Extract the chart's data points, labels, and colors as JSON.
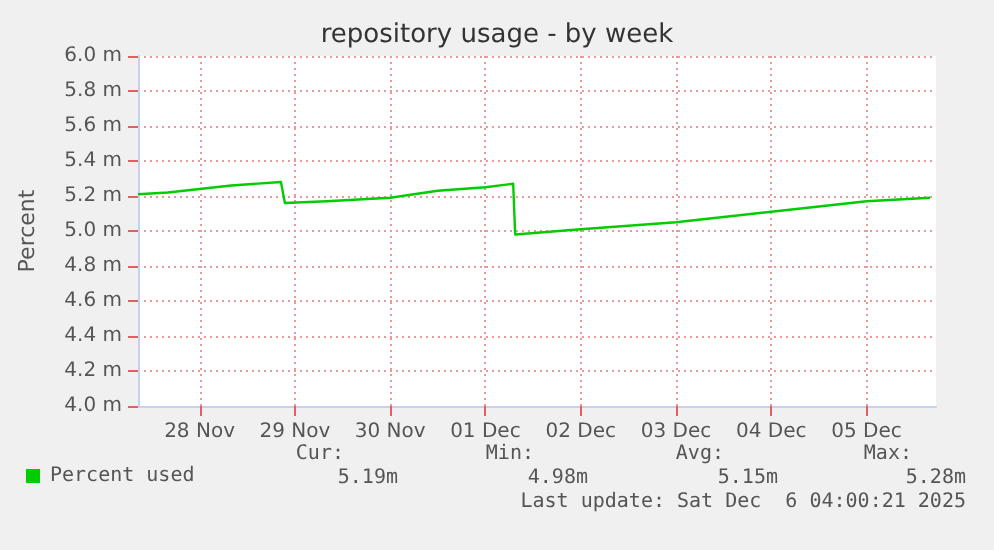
{
  "chart_data": {
    "type": "line",
    "title": "repository usage - by week",
    "ylabel": "Percent",
    "x": [
      "2025-11-27T20:30",
      "2025-11-28T04:00",
      "2025-11-28T12:00",
      "2025-11-28T20:00",
      "2025-11-29T08:30",
      "2025-11-29T09:30",
      "2025-11-29T20:00",
      "2025-11-30T12:00",
      "2025-12-01T00:00",
      "2025-12-01T12:00",
      "2025-12-01T19:00",
      "2025-12-01T19:30",
      "2025-12-02T12:00",
      "2025-12-03T12:00",
      "2025-12-04T12:00",
      "2025-12-05T12:00",
      "2025-12-06T04:00"
    ],
    "series": [
      {
        "name": "Percent used",
        "color": "#00cc00",
        "values": [
          5.21,
          5.22,
          5.24,
          5.26,
          5.28,
          5.16,
          5.17,
          5.19,
          5.23,
          5.25,
          5.27,
          4.98,
          5.01,
          5.05,
          5.11,
          5.17,
          5.19
        ]
      }
    ],
    "xlim": [
      "2025-11-27T20:30",
      "2025-12-06T05:30"
    ],
    "xticks": [
      {
        "value": "2025-11-28T12:00",
        "label": "28 Nov"
      },
      {
        "value": "2025-11-29T12:00",
        "label": "29 Nov"
      },
      {
        "value": "2025-11-30T12:00",
        "label": "30 Nov"
      },
      {
        "value": "2025-12-01T12:00",
        "label": "01 Dec"
      },
      {
        "value": "2025-12-02T12:00",
        "label": "02 Dec"
      },
      {
        "value": "2025-12-03T12:00",
        "label": "03 Dec"
      },
      {
        "value": "2025-12-04T12:00",
        "label": "04 Dec"
      },
      {
        "value": "2025-12-05T12:00",
        "label": "05 Dec"
      }
    ],
    "ylim": [
      4.0,
      6.0
    ],
    "yticks": [
      {
        "value": 4.0,
        "label": "4.0 m"
      },
      {
        "value": 4.2,
        "label": "4.2 m"
      },
      {
        "value": 4.4,
        "label": "4.4 m"
      },
      {
        "value": 4.6,
        "label": "4.6 m"
      },
      {
        "value": 4.8,
        "label": "4.8 m"
      },
      {
        "value": 5.0,
        "label": "5.0 m"
      },
      {
        "value": 5.2,
        "label": "5.2 m"
      },
      {
        "value": 5.4,
        "label": "5.4 m"
      },
      {
        "value": 5.6,
        "label": "5.6 m"
      },
      {
        "value": 5.8,
        "label": "5.8 m"
      },
      {
        "value": 6.0,
        "label": "6.0 m"
      }
    ],
    "annotations": [
      "Cur:",
      "Min:",
      "Avg:",
      "Max:",
      "5.19m",
      "4.98m",
      "5.15m",
      "5.28m",
      "Last update: Sat Dec  6 04:00:21 2025"
    ],
    "grid": true,
    "legend": "bottom left",
    "marker": "none",
    "line_style": "solid"
  }
}
